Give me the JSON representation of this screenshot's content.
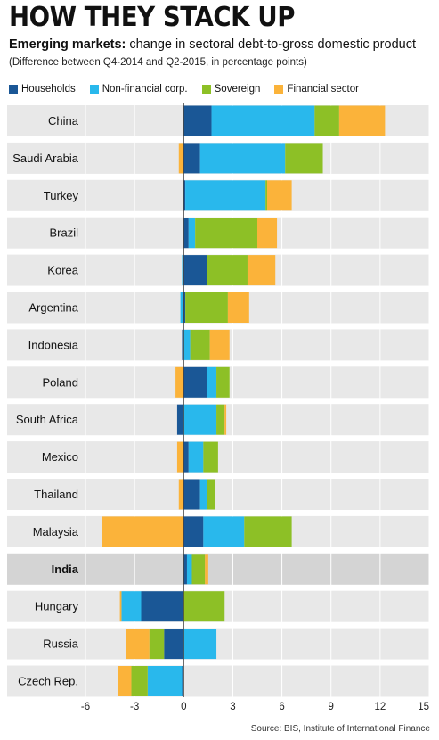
{
  "header": {
    "title": "HOW THEY STACK UP",
    "subtitle_bold": "Emerging markets:",
    "subtitle_rest": " change in sectoral debt-to-gross domestic product",
    "note": "(Difference between Q4-2014 and Q2-2015, in percentage points)"
  },
  "colors": {
    "Households": "#1a5796",
    "Non-financial corp.": "#29b8ec",
    "Sovereign": "#8dc026",
    "Financial sector": "#fbb33a",
    "row_band": "#e8e8e8",
    "highlight_band": "#d4d4d4"
  },
  "source": "Source: BIS, Institute of International Finance",
  "chart_data": {
    "type": "bar",
    "orientation": "horizontal",
    "stacked": true,
    "categories": [
      "China",
      "Saudi Arabia",
      "Turkey",
      "Brazil",
      "Korea",
      "Argentina",
      "Indonesia",
      "Poland",
      "South Africa",
      "Mexico",
      "Thailand",
      "Malaysia",
      "India",
      "Hungary",
      "Russia",
      "Czech Rep."
    ],
    "highlighted_category": "India",
    "series": [
      {
        "name": "Households",
        "values": [
          1.7,
          1.0,
          0.1,
          0.3,
          1.4,
          0.1,
          -0.1,
          1.4,
          -0.4,
          0.3,
          1.0,
          1.2,
          0.2,
          -2.6,
          -1.2,
          -0.1
        ]
      },
      {
        "name": "Non-financial corp.",
        "values": [
          6.3,
          5.2,
          4.9,
          0.4,
          -0.1,
          -0.2,
          0.4,
          0.6,
          2.0,
          0.9,
          0.4,
          2.5,
          0.3,
          -1.2,
          2.0,
          -2.1
        ]
      },
      {
        "name": "Sovereign",
        "values": [
          1.5,
          2.3,
          0.1,
          3.8,
          2.5,
          2.6,
          1.2,
          0.8,
          0.5,
          0.9,
          0.5,
          2.9,
          0.8,
          2.5,
          -0.9,
          -1.0
        ]
      },
      {
        "name": "Financial sector",
        "values": [
          2.8,
          -0.3,
          1.5,
          1.2,
          1.7,
          1.3,
          1.2,
          -0.5,
          0.1,
          -0.4,
          -0.3,
          -5.0,
          0.2,
          -0.1,
          -1.4,
          -0.8
        ]
      }
    ],
    "xlim": [
      -6,
      15
    ],
    "xticks": [
      -6,
      -3,
      0,
      3,
      6,
      9,
      12,
      15
    ],
    "grid": true,
    "legend_position": "top-left"
  }
}
